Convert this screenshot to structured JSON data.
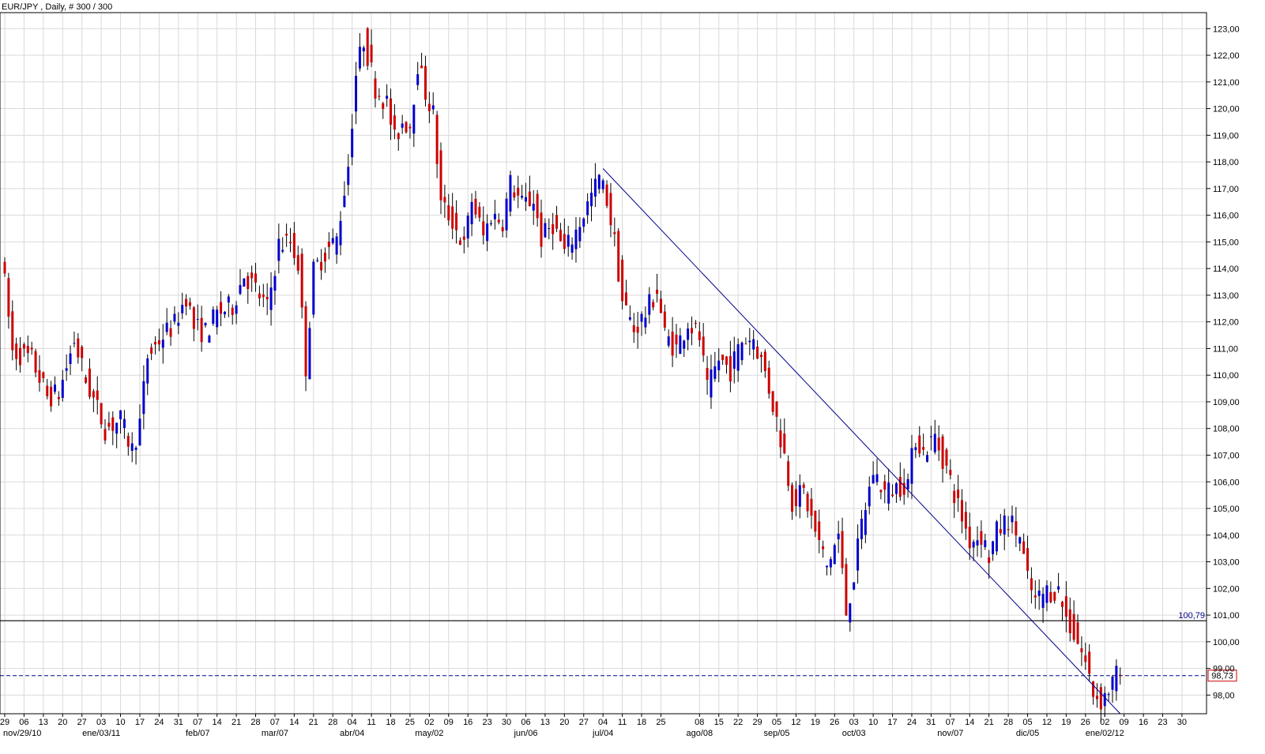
{
  "chart_data": {
    "type": "candlestick",
    "title": "EUR/JPY , Daily, # 300 / 300",
    "ylim": [
      97.3,
      123.6
    ],
    "y_ticks": [
      98,
      99,
      100,
      101,
      102,
      103,
      104,
      105,
      106,
      107,
      108,
      109,
      110,
      111,
      112,
      113,
      114,
      115,
      116,
      117,
      118,
      119,
      120,
      121,
      122,
      123
    ],
    "y_tick_labels": [
      "98,00",
      "99,00",
      "100,00",
      "101,00",
      "102,00",
      "103,00",
      "104,00",
      "105,00",
      "106,00",
      "107,00",
      "108,00",
      "109,00",
      "110,00",
      "111,00",
      "112,00",
      "113,00",
      "114,00",
      "115,00",
      "116,00",
      "117,00",
      "118,00",
      "119,00",
      "120,00",
      "121,00",
      "122,00",
      "123,00"
    ],
    "x_ticks": [
      "29",
      "06",
      "13",
      "20",
      "27",
      "03",
      "10",
      "17",
      "24",
      "31",
      "07",
      "14",
      "21",
      "28",
      "07",
      "14",
      "21",
      "28",
      "04",
      "11",
      "18",
      "25",
      "02",
      "09",
      "16",
      "23",
      "30",
      "06",
      "13",
      "20",
      "27",
      "04",
      "11",
      "18",
      "25",
      "08",
      "15",
      "22",
      "29",
      "05",
      "12",
      "19",
      "26",
      "03",
      "10",
      "17",
      "24",
      "31",
      "07",
      "14",
      "21",
      "28",
      "05",
      "12",
      "19",
      "26",
      "02",
      "09",
      "16",
      "23",
      "30"
    ],
    "x_tick_index": [
      0,
      5,
      10,
      15,
      20,
      25,
      30,
      35,
      40,
      45,
      50,
      55,
      60,
      65,
      70,
      75,
      80,
      85,
      90,
      95,
      100,
      105,
      110,
      115,
      120,
      125,
      130,
      135,
      140,
      145,
      150,
      155,
      160,
      165,
      170,
      180,
      185,
      190,
      195,
      200,
      205,
      210,
      215,
      220,
      225,
      230,
      235,
      240,
      245,
      250,
      255,
      260,
      265,
      270,
      275,
      280,
      285,
      290,
      295,
      300,
      305
    ],
    "month_labels": [
      "nov/29/10",
      "ene/03/11",
      "feb/07",
      "mar/07",
      "abr/04",
      "may/02",
      "jun/06",
      "jul/04",
      "ago/08",
      "sep/05",
      "oct/03",
      "nov/07",
      "dic/05",
      "ene/02/12"
    ],
    "month_index": [
      0,
      25,
      50,
      70,
      90,
      110,
      135,
      155,
      180,
      200,
      220,
      245,
      265,
      285
    ],
    "candle_count": 300,
    "levels": {
      "support": {
        "value": 100.79,
        "label": "100,79",
        "color": "#000000"
      },
      "current": {
        "value": 98.73,
        "label": "98,73",
        "color": "#00008b"
      }
    },
    "trendline": {
      "from": [
        155,
        117.75
      ],
      "to": [
        289,
        97.3
      ],
      "color": "#00008b"
    },
    "anchors": [
      [
        0,
        114.7
      ],
      [
        3,
        110.9
      ],
      [
        8,
        110.6
      ],
      [
        12,
        109.2
      ],
      [
        15,
        109.3
      ],
      [
        19,
        111.3
      ],
      [
        22,
        109.8
      ],
      [
        27,
        108.0
      ],
      [
        31,
        108.3
      ],
      [
        34,
        107.2
      ],
      [
        36,
        108.2
      ],
      [
        38,
        110.7
      ],
      [
        42,
        111.5
      ],
      [
        45,
        111.9
      ],
      [
        48,
        113.0
      ],
      [
        50,
        111.8
      ],
      [
        53,
        111.6
      ],
      [
        56,
        112.3
      ],
      [
        60,
        112.6
      ],
      [
        63,
        113.8
      ],
      [
        66,
        113.2
      ],
      [
        69,
        112.5
      ],
      [
        72,
        114.9
      ],
      [
        75,
        115.0
      ],
      [
        77,
        114.2
      ],
      [
        79,
        110.3
      ],
      [
        81,
        113.9
      ],
      [
        84,
        114.6
      ],
      [
        87,
        115.1
      ],
      [
        90,
        117.9
      ],
      [
        92,
        121.3
      ],
      [
        94,
        122.6
      ],
      [
        97,
        120.8
      ],
      [
        100,
        120.2
      ],
      [
        102,
        118.8
      ],
      [
        104,
        119.5
      ],
      [
        106,
        119.4
      ],
      [
        108,
        121.7
      ],
      [
        110,
        120.6
      ],
      [
        112,
        119.8
      ],
      [
        114,
        116.4
      ],
      [
        117,
        115.8
      ],
      [
        120,
        114.8
      ],
      [
        122,
        116.6
      ],
      [
        125,
        115.2
      ],
      [
        127,
        116.0
      ],
      [
        130,
        115.8
      ],
      [
        132,
        117.2
      ],
      [
        135,
        116.4
      ],
      [
        138,
        116.6
      ],
      [
        140,
        115.1
      ],
      [
        143,
        115.7
      ],
      [
        146,
        114.6
      ],
      [
        149,
        115.4
      ],
      [
        152,
        116.4
      ],
      [
        155,
        117.4
      ],
      [
        157,
        116.6
      ],
      [
        159,
        115.0
      ],
      [
        161,
        112.8
      ],
      [
        164,
        111.7
      ],
      [
        167,
        112.3
      ],
      [
        170,
        113.2
      ],
      [
        172,
        111.5
      ],
      [
        175,
        111.0
      ],
      [
        178,
        112.0
      ],
      [
        181,
        111.4
      ],
      [
        183,
        109.4
      ],
      [
        186,
        110.6
      ],
      [
        189,
        110.2
      ],
      [
        192,
        111.3
      ],
      [
        195,
        111.4
      ],
      [
        198,
        110.1
      ],
      [
        201,
        108.3
      ],
      [
        203,
        107.0
      ],
      [
        205,
        105.3
      ],
      [
        208,
        105.6
      ],
      [
        211,
        104.1
      ],
      [
        214,
        102.8
      ],
      [
        217,
        104.0
      ],
      [
        219,
        101.1
      ],
      [
        221,
        102.5
      ],
      [
        223,
        104.4
      ],
      [
        226,
        106.4
      ],
      [
        229,
        105.6
      ],
      [
        232,
        105.8
      ],
      [
        235,
        106.0
      ],
      [
        237,
        107.7
      ],
      [
        239,
        107.1
      ],
      [
        242,
        107.7
      ],
      [
        245,
        106.5
      ],
      [
        248,
        105.1
      ],
      [
        251,
        103.8
      ],
      [
        254,
        104.0
      ],
      [
        256,
        103.2
      ],
      [
        258,
        104.1
      ],
      [
        261,
        104.6
      ],
      [
        264,
        103.9
      ],
      [
        266,
        102.3
      ],
      [
        268,
        101.5
      ],
      [
        271,
        101.9
      ],
      [
        274,
        101.9
      ],
      [
        276,
        100.9
      ],
      [
        279,
        100.0
      ],
      [
        281,
        99.2
      ],
      [
        283,
        98.1
      ],
      [
        285,
        97.8
      ],
      [
        287,
        98.2
      ],
      [
        289,
        98.73
      ]
    ]
  }
}
